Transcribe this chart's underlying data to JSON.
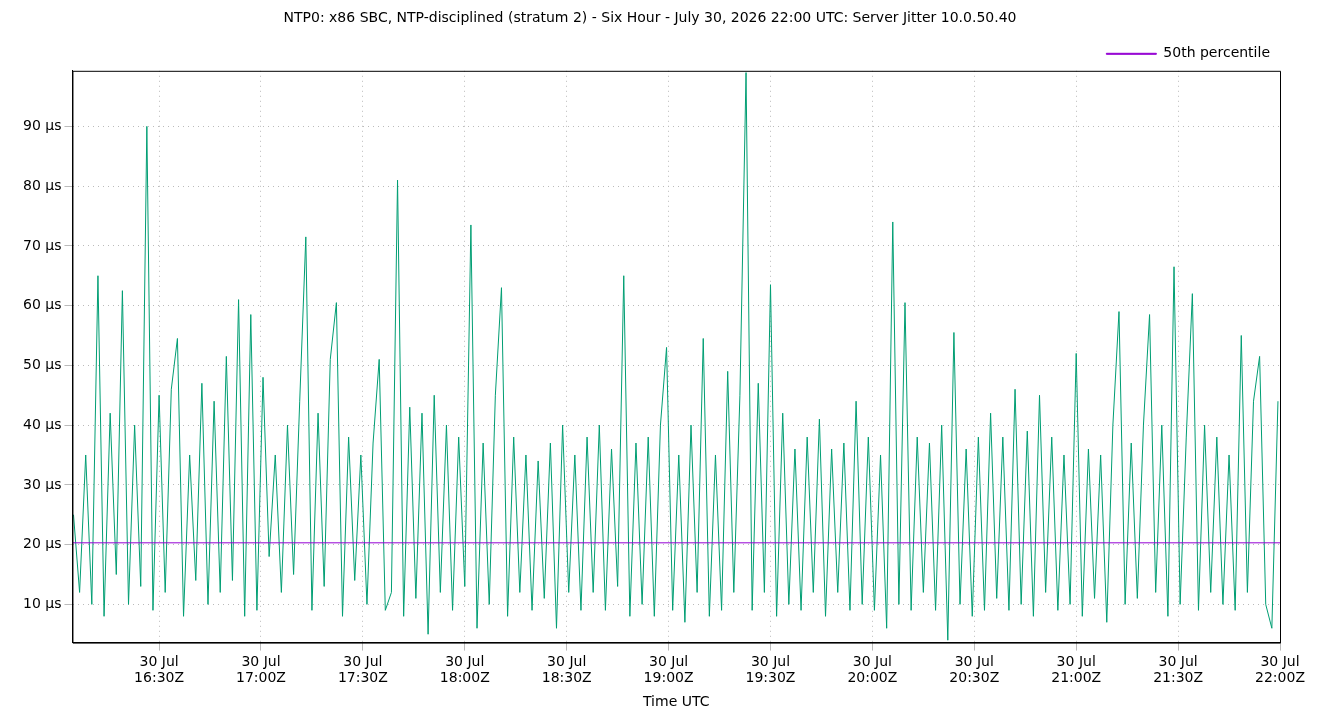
{
  "chart_data": {
    "type": "line",
    "title": "NTP0: x86 SBC, NTP-disciplined (stratum 2) - Six Hour - July 30, 2026 22:00 UTC: Server Jitter 10.0.50.40",
    "xlabel": "Time UTC",
    "xlim": [
      "2026-07-30T16:04:30",
      "2026-07-30T22:00"
    ],
    "xticks": [
      {
        "value": "2026-07-30T16:30",
        "label": "30 Jul\n16:30Z"
      },
      {
        "value": "2026-07-30T17:00",
        "label": "30 Jul\n17:00Z"
      },
      {
        "value": "2026-07-30T17:30",
        "label": "30 Jul\n17:30Z"
      },
      {
        "value": "2026-07-30T18:00",
        "label": "30 Jul\n18:00Z"
      },
      {
        "value": "2026-07-30T18:30",
        "label": "30 Jul\n18:30Z"
      },
      {
        "value": "2026-07-30T19:00",
        "label": "30 Jul\n19:00Z"
      },
      {
        "value": "2026-07-30T19:30",
        "label": "30 Jul\n19:30Z"
      },
      {
        "value": "2026-07-30T20:00",
        "label": "30 Jul\n20:00Z"
      },
      {
        "value": "2026-07-30T20:30",
        "label": "30 Jul\n20:30Z"
      },
      {
        "value": "2026-07-30T21:00",
        "label": "30 Jul\n21:00Z"
      },
      {
        "value": "2026-07-30T21:30",
        "label": "30 Jul\n21:30Z"
      },
      {
        "value": "2026-07-30T22:00",
        "label": "30 Jul\n22:00Z"
      }
    ],
    "ylim": [
      3.6,
      99.3
    ],
    "yticks": [
      {
        "value": 10,
        "label": "10 µs"
      },
      {
        "value": 20,
        "label": "20 µs"
      },
      {
        "value": 30,
        "label": "30 µs"
      },
      {
        "value": 40,
        "label": "40 µs"
      },
      {
        "value": 50,
        "label": "50 µs"
      },
      {
        "value": 60,
        "label": "60 µs"
      },
      {
        "value": 70,
        "label": "70 µs"
      },
      {
        "value": 80,
        "label": "80 µs"
      },
      {
        "value": 90,
        "label": "90 µs"
      }
    ],
    "grid": true,
    "legend": "top right",
    "marker": "none",
    "line_style": "solid",
    "series": [
      {
        "name": "50th percentile",
        "color": "#9400d3",
        "x": [
          "2026-07-30T16:04:30",
          "2026-07-30T22:00"
        ],
        "values": [
          20.3,
          20.3
        ]
      },
      {
        "color": "#009e73",
        "x": [
          "2026-07-30T16:04:48",
          "2026-07-30T16:06:36",
          "2026-07-30T16:08:24",
          "2026-07-30T16:10:12",
          "2026-07-30T16:12:00",
          "2026-07-30T16:13:48",
          "2026-07-30T16:15:36",
          "2026-07-30T16:17:24",
          "2026-07-30T16:19:12",
          "2026-07-30T16:21:00",
          "2026-07-30T16:22:48",
          "2026-07-30T16:24:36",
          "2026-07-30T16:26:24",
          "2026-07-30T16:28:12",
          "2026-07-30T16:30:00",
          "2026-07-30T16:31:48",
          "2026-07-30T16:33:36",
          "2026-07-30T16:35:24",
          "2026-07-30T16:37:12",
          "2026-07-30T16:39:00",
          "2026-07-30T16:40:48",
          "2026-07-30T16:42:36",
          "2026-07-30T16:44:24",
          "2026-07-30T16:46:12",
          "2026-07-30T16:48:00",
          "2026-07-30T16:49:48",
          "2026-07-30T16:51:36",
          "2026-07-30T16:53:24",
          "2026-07-30T16:55:12",
          "2026-07-30T16:57:00",
          "2026-07-30T16:58:48",
          "2026-07-30T17:00:36",
          "2026-07-30T17:02:24",
          "2026-07-30T17:04:12",
          "2026-07-30T17:06:00",
          "2026-07-30T17:07:48",
          "2026-07-30T17:09:36",
          "2026-07-30T17:11:24",
          "2026-07-30T17:13:12",
          "2026-07-30T17:15:00",
          "2026-07-30T17:16:48",
          "2026-07-30T17:18:36",
          "2026-07-30T17:20:24",
          "2026-07-30T17:22:12",
          "2026-07-30T17:24:00",
          "2026-07-30T17:25:48",
          "2026-07-30T17:27:36",
          "2026-07-30T17:29:24",
          "2026-07-30T17:31:12",
          "2026-07-30T17:33:00",
          "2026-07-30T17:34:48",
          "2026-07-30T17:36:36",
          "2026-07-30T17:38:24",
          "2026-07-30T17:40:12",
          "2026-07-30T17:42:00",
          "2026-07-30T17:43:48",
          "2026-07-30T17:45:36",
          "2026-07-30T17:47:24",
          "2026-07-30T17:49:12",
          "2026-07-30T17:51:00",
          "2026-07-30T17:52:48",
          "2026-07-30T17:54:36",
          "2026-07-30T17:56:24",
          "2026-07-30T17:58:12",
          "2026-07-30T18:00:00",
          "2026-07-30T18:01:48",
          "2026-07-30T18:03:36",
          "2026-07-30T18:05:24",
          "2026-07-30T18:07:12",
          "2026-07-30T18:09:00",
          "2026-07-30T18:10:48",
          "2026-07-30T18:12:36",
          "2026-07-30T18:14:24",
          "2026-07-30T18:16:12",
          "2026-07-30T18:18:00",
          "2026-07-30T18:19:48",
          "2026-07-30T18:21:36",
          "2026-07-30T18:23:24",
          "2026-07-30T18:25:12",
          "2026-07-30T18:27:00",
          "2026-07-30T18:28:48",
          "2026-07-30T18:30:36",
          "2026-07-30T18:32:24",
          "2026-07-30T18:34:12",
          "2026-07-30T18:36:00",
          "2026-07-30T18:37:48",
          "2026-07-30T18:39:36",
          "2026-07-30T18:41:24",
          "2026-07-30T18:43:12",
          "2026-07-30T18:45:00",
          "2026-07-30T18:46:48",
          "2026-07-30T18:48:36",
          "2026-07-30T18:50:24",
          "2026-07-30T18:52:12",
          "2026-07-30T18:54:00",
          "2026-07-30T18:55:48",
          "2026-07-30T18:57:36",
          "2026-07-30T18:59:24",
          "2026-07-30T19:01:12",
          "2026-07-30T19:03:00",
          "2026-07-30T19:04:48",
          "2026-07-30T19:06:36",
          "2026-07-30T19:08:24",
          "2026-07-30T19:10:12",
          "2026-07-30T19:12:00",
          "2026-07-30T19:13:48",
          "2026-07-30T19:15:36",
          "2026-07-30T19:17:24",
          "2026-07-30T19:19:12",
          "2026-07-30T19:21:00",
          "2026-07-30T19:22:48",
          "2026-07-30T19:24:36",
          "2026-07-30T19:26:24",
          "2026-07-30T19:28:12",
          "2026-07-30T19:30:00",
          "2026-07-30T19:31:48",
          "2026-07-30T19:33:36",
          "2026-07-30T19:35:24",
          "2026-07-30T19:37:12",
          "2026-07-30T19:39:00",
          "2026-07-30T19:40:48",
          "2026-07-30T19:42:36",
          "2026-07-30T19:44:24",
          "2026-07-30T19:46:12",
          "2026-07-30T19:48:00",
          "2026-07-30T19:49:48",
          "2026-07-30T19:51:36",
          "2026-07-30T19:53:24",
          "2026-07-30T19:55:12",
          "2026-07-30T19:57:00",
          "2026-07-30T19:58:48",
          "2026-07-30T20:00:36",
          "2026-07-30T20:02:24",
          "2026-07-30T20:04:12",
          "2026-07-30T20:06:00",
          "2026-07-30T20:07:48",
          "2026-07-30T20:09:36",
          "2026-07-30T20:11:24",
          "2026-07-30T20:13:12",
          "2026-07-30T20:15:00",
          "2026-07-30T20:16:48",
          "2026-07-30T20:18:36",
          "2026-07-30T20:20:24",
          "2026-07-30T20:22:12",
          "2026-07-30T20:24:00",
          "2026-07-30T20:25:48",
          "2026-07-30T20:27:36",
          "2026-07-30T20:29:24",
          "2026-07-30T20:31:12",
          "2026-07-30T20:33:00",
          "2026-07-30T20:34:48",
          "2026-07-30T20:36:36",
          "2026-07-30T20:38:24",
          "2026-07-30T20:40:12",
          "2026-07-30T20:42:00",
          "2026-07-30T20:43:48",
          "2026-07-30T20:45:36",
          "2026-07-30T20:47:24",
          "2026-07-30T20:49:12",
          "2026-07-30T20:51:00",
          "2026-07-30T20:52:48",
          "2026-07-30T20:54:36",
          "2026-07-30T20:56:24",
          "2026-07-30T20:58:12",
          "2026-07-30T21:00:00",
          "2026-07-30T21:01:48",
          "2026-07-30T21:03:36",
          "2026-07-30T21:05:24",
          "2026-07-30T21:07:12",
          "2026-07-30T21:09:00",
          "2026-07-30T21:10:48",
          "2026-07-30T21:12:36",
          "2026-07-30T21:14:24",
          "2026-07-30T21:16:12",
          "2026-07-30T21:18:00",
          "2026-07-30T21:19:48",
          "2026-07-30T21:21:36",
          "2026-07-30T21:23:24",
          "2026-07-30T21:25:12",
          "2026-07-30T21:27:00",
          "2026-07-30T21:28:48",
          "2026-07-30T21:30:36",
          "2026-07-30T21:32:24",
          "2026-07-30T21:34:12",
          "2026-07-30T21:36:00",
          "2026-07-30T21:37:48",
          "2026-07-30T21:39:36",
          "2026-07-30T21:41:24",
          "2026-07-30T21:43:12",
          "2026-07-30T21:45:00",
          "2026-07-30T21:46:48",
          "2026-07-30T21:48:36",
          "2026-07-30T21:50:24",
          "2026-07-30T21:52:12",
          "2026-07-30T21:54:00",
          "2026-07-30T21:55:48",
          "2026-07-30T21:57:36",
          "2026-07-30T21:59:24"
        ],
        "values": [
          25,
          12,
          35,
          10,
          65,
          8,
          42,
          15,
          62.5,
          10,
          40,
          13,
          90,
          9,
          45,
          12,
          46,
          54.5,
          8,
          35,
          14,
          47,
          10,
          44,
          12,
          51.5,
          14,
          61,
          8,
          58.5,
          9,
          48,
          18,
          35,
          12,
          40,
          15,
          44,
          71.5,
          9,
          42,
          13,
          51,
          60.5,
          8,
          38,
          14,
          35,
          10,
          37,
          51,
          9,
          12,
          81,
          8,
          43,
          11,
          42,
          5,
          45,
          12,
          40,
          9,
          38,
          13,
          73.5,
          6,
          37,
          10,
          45,
          63,
          8,
          38,
          12,
          35,
          9,
          34,
          11,
          37,
          6,
          40,
          12,
          35,
          9,
          38,
          12,
          40,
          9,
          36,
          13,
          65,
          8,
          37,
          10,
          38,
          8,
          40,
          53,
          9,
          35,
          7,
          40,
          12,
          54.5,
          8,
          35,
          9,
          49,
          12,
          45,
          99,
          9,
          47,
          12,
          63.5,
          8,
          42,
          10,
          36,
          9,
          38,
          12,
          41,
          8,
          36,
          12,
          37,
          9,
          44,
          10,
          38,
          9,
          35,
          6,
          74,
          10,
          60.5,
          9,
          38,
          12,
          37,
          9,
          40,
          4,
          55.5,
          10,
          36,
          8,
          38,
          9,
          42,
          11,
          38,
          9,
          46,
          10,
          39,
          8,
          45,
          12,
          38,
          9,
          35,
          10,
          52,
          8,
          36,
          11,
          35,
          7,
          40,
          59,
          10,
          37,
          11,
          40,
          58.5,
          12,
          40,
          8,
          66.5,
          10,
          38,
          62,
          9,
          40,
          12,
          38,
          10,
          35,
          9,
          55,
          12,
          44,
          51.5,
          10,
          6,
          44
        ]
      }
    ]
  }
}
